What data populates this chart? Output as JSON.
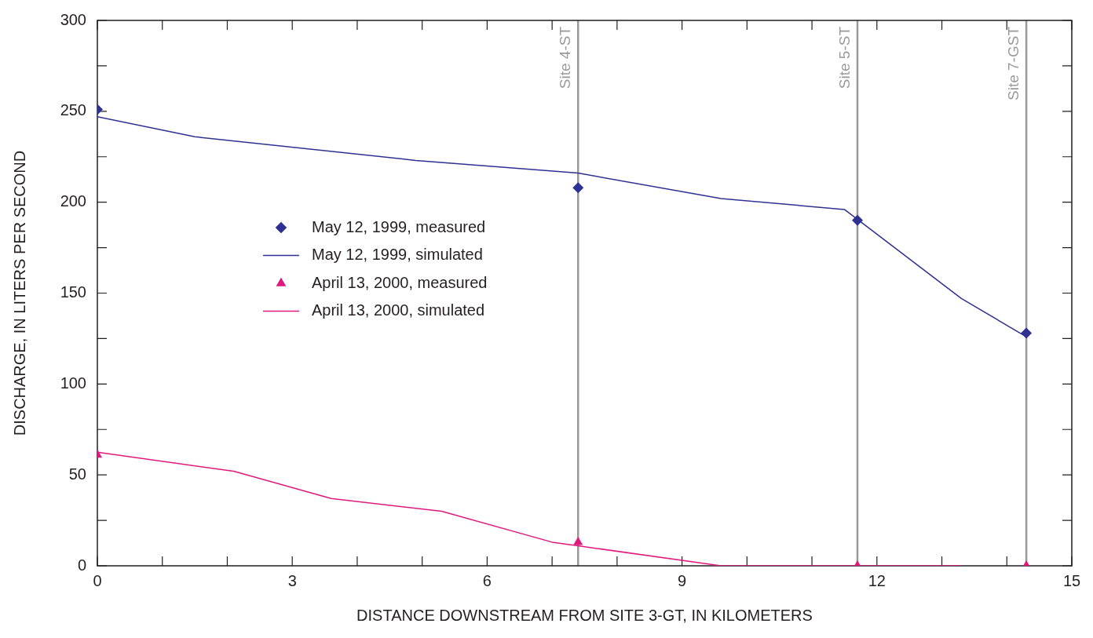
{
  "chart_data": {
    "type": "line",
    "xlabel": "DISTANCE DOWNSTREAM FROM SITE 3-GT, IN KILOMETERS",
    "ylabel": "DISCHARGE, IN LITERS PER SECOND",
    "xlim": [
      0,
      15
    ],
    "xticks": [
      0,
      {
        "value": 1,
        "label": null
      },
      {
        "value": 2,
        "label": null
      },
      3,
      {
        "value": 4,
        "label": null
      },
      {
        "value": 5,
        "label": null
      },
      6,
      {
        "value": 7,
        "label": null
      },
      {
        "value": 8,
        "label": null
      },
      9,
      {
        "value": 10,
        "label": null
      },
      {
        "value": 11,
        "label": null
      },
      12,
      {
        "value": 13,
        "label": null
      },
      {
        "value": 14,
        "label": null
      },
      15
    ],
    "ylim": [
      0,
      300
    ],
    "yticks": [
      0,
      {
        "value": 25,
        "label": null
      },
      50,
      {
        "value": 75,
        "label": null
      },
      100,
      {
        "value": 125,
        "label": null
      },
      150,
      {
        "value": 175,
        "label": null
      },
      200,
      {
        "value": 225,
        "label": null
      },
      250,
      {
        "value": 275,
        "label": null
      },
      300
    ],
    "grid": false,
    "legend": "left",
    "series": [
      {
        "name": "May 12, 1999, measured",
        "type": "scatter",
        "marker": "diamond",
        "color": "#2e3192",
        "x": [
          0,
          7.4,
          11.7,
          14.3
        ],
        "values": [
          251,
          208,
          190,
          128
        ]
      },
      {
        "name": "May 12, 1999, simulated",
        "marker": "none",
        "line_style": "solid",
        "color": "#2e3192",
        "x": [
          0,
          1.5,
          4.9,
          7.4,
          9.6,
          11.5,
          13.3,
          14.3
        ],
        "values": [
          247,
          236,
          223,
          216,
          202,
          196,
          147,
          126
        ]
      },
      {
        "name": "April 13, 2000, measured",
        "type": "scatter",
        "marker": "triangle",
        "color": "#e0197d",
        "x": [
          0,
          7.4,
          11.7,
          14.3
        ],
        "values": [
          61,
          13,
          0,
          0
        ]
      },
      {
        "name": "April 13, 2000, simulated",
        "marker": "none",
        "line_style": "solid",
        "color": "#e0197d",
        "x": [
          0,
          2.1,
          3.6,
          5.3,
          7.0,
          7.4,
          9.6,
          13.3
        ],
        "values": [
          62.5,
          52,
          37,
          30,
          13,
          11,
          0,
          0
        ]
      }
    ],
    "ref_lines": [
      {
        "axis": "x",
        "value": 7.4,
        "label": "Site 4-ST",
        "color": "#999999"
      },
      {
        "axis": "x",
        "value": 11.7,
        "label": "Site 5-ST",
        "color": "#999999"
      },
      {
        "axis": "x",
        "value": 14.3,
        "label": "Site 7-GST",
        "color": "#999999"
      }
    ]
  }
}
